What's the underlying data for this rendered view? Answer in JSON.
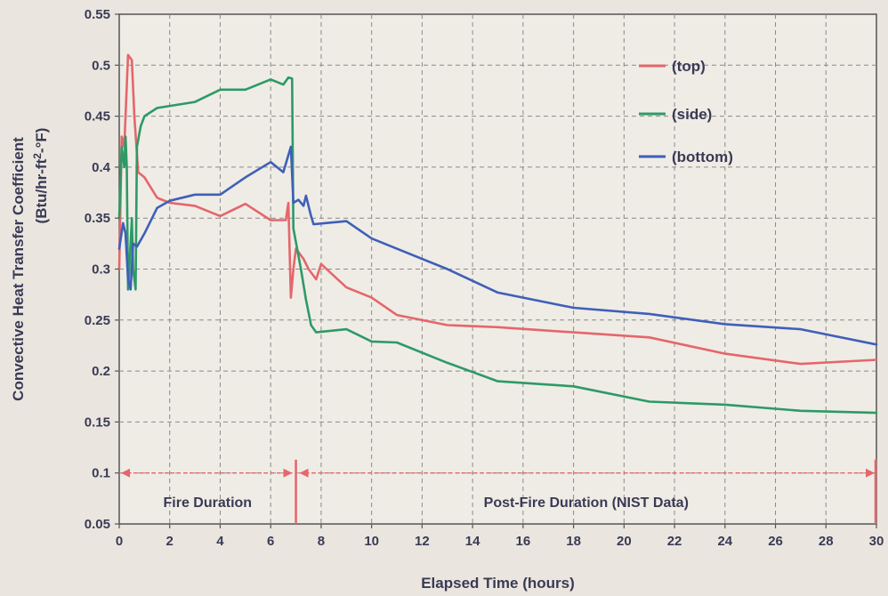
{
  "chart_data": {
    "type": "line",
    "title": "",
    "xlabel": "Elapsed Time (hours)",
    "ylabel_line1": "Convective Heat Transfer Coefficient",
    "ylabel_line2_prefix": "(Btu/hr-ft",
    "ylabel_line2_sup": "2",
    "ylabel_line2_suffix": "-°F)",
    "xlim": [
      0,
      30
    ],
    "ylim": [
      0.05,
      0.55
    ],
    "xticks": [
      0,
      2,
      4,
      6,
      8,
      10,
      12,
      14,
      16,
      18,
      20,
      22,
      24,
      26,
      28,
      30
    ],
    "xtick_labels": [
      "0",
      "2",
      "4",
      "6",
      "8",
      "10",
      "12",
      "14",
      "16",
      "18",
      "20",
      "22",
      "24",
      "26",
      "28",
      "30"
    ],
    "yticks": [
      0.05,
      0.1,
      0.15,
      0.2,
      0.25,
      0.3,
      0.35,
      0.4,
      0.45,
      0.5,
      0.55
    ],
    "ytick_labels": [
      "0.05",
      "0.1",
      "0.15",
      "0.2",
      "0.25",
      "0.3",
      "0.35",
      "0.4",
      "0.45",
      "0.5",
      "0.55"
    ],
    "grid": true,
    "legend_position": "top-right",
    "series": [
      {
        "name": "(top)",
        "color": "#e5666b",
        "points": [
          [
            0,
            0.3
          ],
          [
            0.1,
            0.43
          ],
          [
            0.2,
            0.42
          ],
          [
            0.3,
            0.48
          ],
          [
            0.35,
            0.51
          ],
          [
            0.5,
            0.505
          ],
          [
            0.6,
            0.45
          ],
          [
            0.75,
            0.395
          ],
          [
            1.0,
            0.39
          ],
          [
            1.5,
            0.37
          ],
          [
            2,
            0.365
          ],
          [
            3,
            0.362
          ],
          [
            4,
            0.352
          ],
          [
            5,
            0.364
          ],
          [
            6,
            0.348
          ],
          [
            6.6,
            0.348
          ],
          [
            6.7,
            0.365
          ],
          [
            6.8,
            0.272
          ],
          [
            6.9,
            0.3
          ],
          [
            7.0,
            0.32
          ],
          [
            7.3,
            0.31
          ],
          [
            7.5,
            0.3
          ],
          [
            7.8,
            0.29
          ],
          [
            8,
            0.305
          ],
          [
            9,
            0.282
          ],
          [
            10,
            0.272
          ],
          [
            11,
            0.255
          ],
          [
            13,
            0.245
          ],
          [
            15,
            0.243
          ],
          [
            18,
            0.238
          ],
          [
            21,
            0.233
          ],
          [
            24,
            0.217
          ],
          [
            27,
            0.207
          ],
          [
            30,
            0.211
          ]
        ]
      },
      {
        "name": "(side)",
        "color": "#2d9a66",
        "points": [
          [
            0,
            0.35
          ],
          [
            0.1,
            0.42
          ],
          [
            0.2,
            0.4
          ],
          [
            0.25,
            0.43
          ],
          [
            0.3,
            0.4
          ],
          [
            0.35,
            0.28
          ],
          [
            0.4,
            0.3
          ],
          [
            0.5,
            0.35
          ],
          [
            0.55,
            0.3
          ],
          [
            0.65,
            0.28
          ],
          [
            0.7,
            0.42
          ],
          [
            0.85,
            0.44
          ],
          [
            1.0,
            0.45
          ],
          [
            1.5,
            0.458
          ],
          [
            2,
            0.46
          ],
          [
            3,
            0.464
          ],
          [
            4,
            0.476
          ],
          [
            5,
            0.476
          ],
          [
            6,
            0.486
          ],
          [
            6.5,
            0.481
          ],
          [
            6.7,
            0.488
          ],
          [
            6.85,
            0.487
          ],
          [
            6.9,
            0.34
          ],
          [
            7.2,
            0.3
          ],
          [
            7.4,
            0.27
          ],
          [
            7.6,
            0.245
          ],
          [
            7.8,
            0.238
          ],
          [
            9,
            0.241
          ],
          [
            10,
            0.229
          ],
          [
            11,
            0.228
          ],
          [
            13,
            0.208
          ],
          [
            15,
            0.19
          ],
          [
            18,
            0.185
          ],
          [
            21,
            0.17
          ],
          [
            24,
            0.167
          ],
          [
            27,
            0.161
          ],
          [
            30,
            0.159
          ]
        ]
      },
      {
        "name": "(bottom)",
        "color": "#3f5fb8",
        "points": [
          [
            0,
            0.32
          ],
          [
            0.15,
            0.345
          ],
          [
            0.25,
            0.335
          ],
          [
            0.35,
            0.29
          ],
          [
            0.45,
            0.28
          ],
          [
            0.55,
            0.325
          ],
          [
            0.7,
            0.322
          ],
          [
            1.0,
            0.335
          ],
          [
            1.5,
            0.36
          ],
          [
            2,
            0.367
          ],
          [
            3,
            0.373
          ],
          [
            4,
            0.373
          ],
          [
            5,
            0.39
          ],
          [
            6,
            0.405
          ],
          [
            6.5,
            0.395
          ],
          [
            6.8,
            0.42
          ],
          [
            6.9,
            0.365
          ],
          [
            7.1,
            0.368
          ],
          [
            7.3,
            0.362
          ],
          [
            7.4,
            0.372
          ],
          [
            7.6,
            0.352
          ],
          [
            7.7,
            0.344
          ],
          [
            9,
            0.347
          ],
          [
            10,
            0.33
          ],
          [
            11,
            0.32
          ],
          [
            13,
            0.3
          ],
          [
            15,
            0.277
          ],
          [
            18,
            0.262
          ],
          [
            21,
            0.256
          ],
          [
            24,
            0.246
          ],
          [
            27,
            0.241
          ],
          [
            30,
            0.226
          ]
        ]
      }
    ],
    "annotations": [
      {
        "text": "Fire Duration",
        "x_start": 0,
        "x_end": 7,
        "y": 0.1,
        "label_y": 0.072,
        "color": "#e5666b"
      },
      {
        "text": "Post-Fire Duration (NIST Data)",
        "x_start": 7,
        "x_end": 30,
        "y": 0.1,
        "label_y": 0.072,
        "color": "#e5666b"
      }
    ]
  }
}
